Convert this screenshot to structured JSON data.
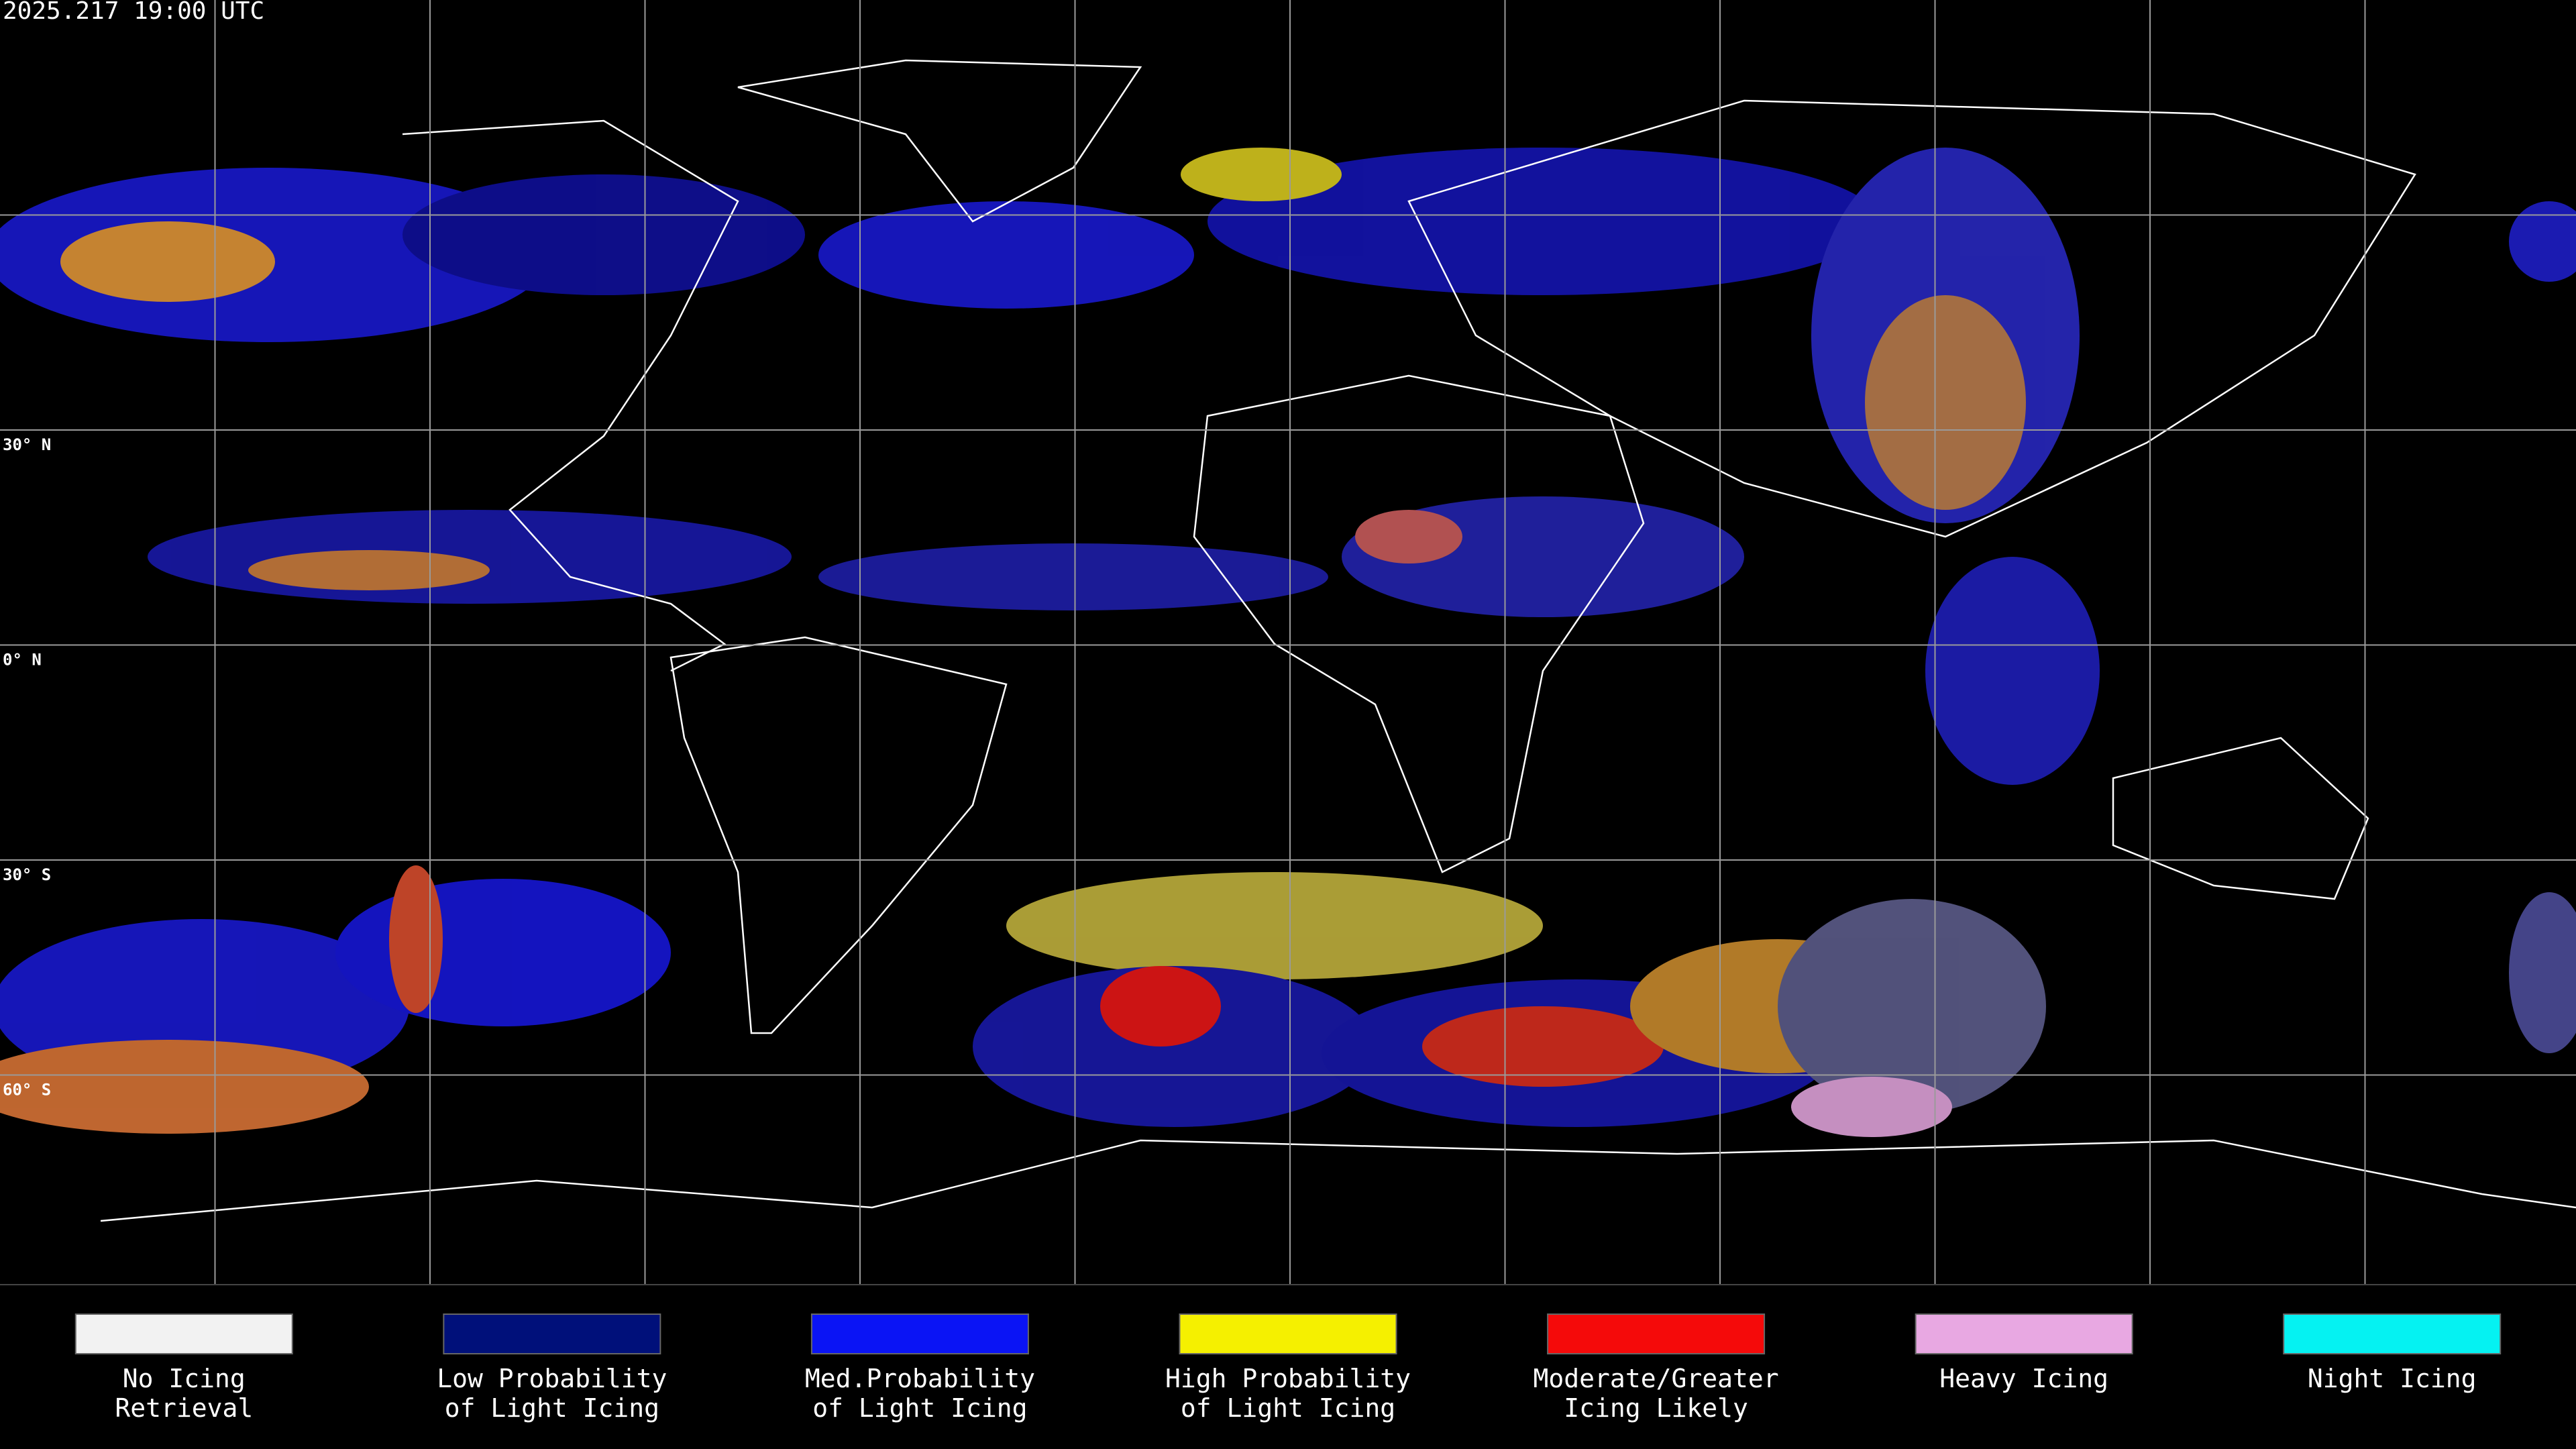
{
  "header": {
    "timestamp": "2025.217 19:00 UTC"
  },
  "latitude_labels": [
    "30° N",
    "0° N",
    "30° S",
    "60° S"
  ],
  "legend": [
    {
      "label_lines": [
        "No Icing",
        "Retrieval"
      ],
      "color": "#f2f2f2"
    },
    {
      "label_lines": [
        "Low Probability",
        "of Light Icing"
      ],
      "color": "#00107a"
    },
    {
      "label_lines": [
        "Med.Probability",
        "of Light Icing"
      ],
      "color": "#0a14f5"
    },
    {
      "label_lines": [
        "High Probability",
        "of Light Icing"
      ],
      "color": "#f5f000"
    },
    {
      "label_lines": [
        "Moderate/Greater",
        "Icing Likely"
      ],
      "color": "#f50a0a"
    },
    {
      "label_lines": [
        "Heavy Icing"
      ],
      "color": "#e8a8e2"
    },
    {
      "label_lines": [
        "Night Icing"
      ],
      "color": "#05f2f2"
    }
  ]
}
